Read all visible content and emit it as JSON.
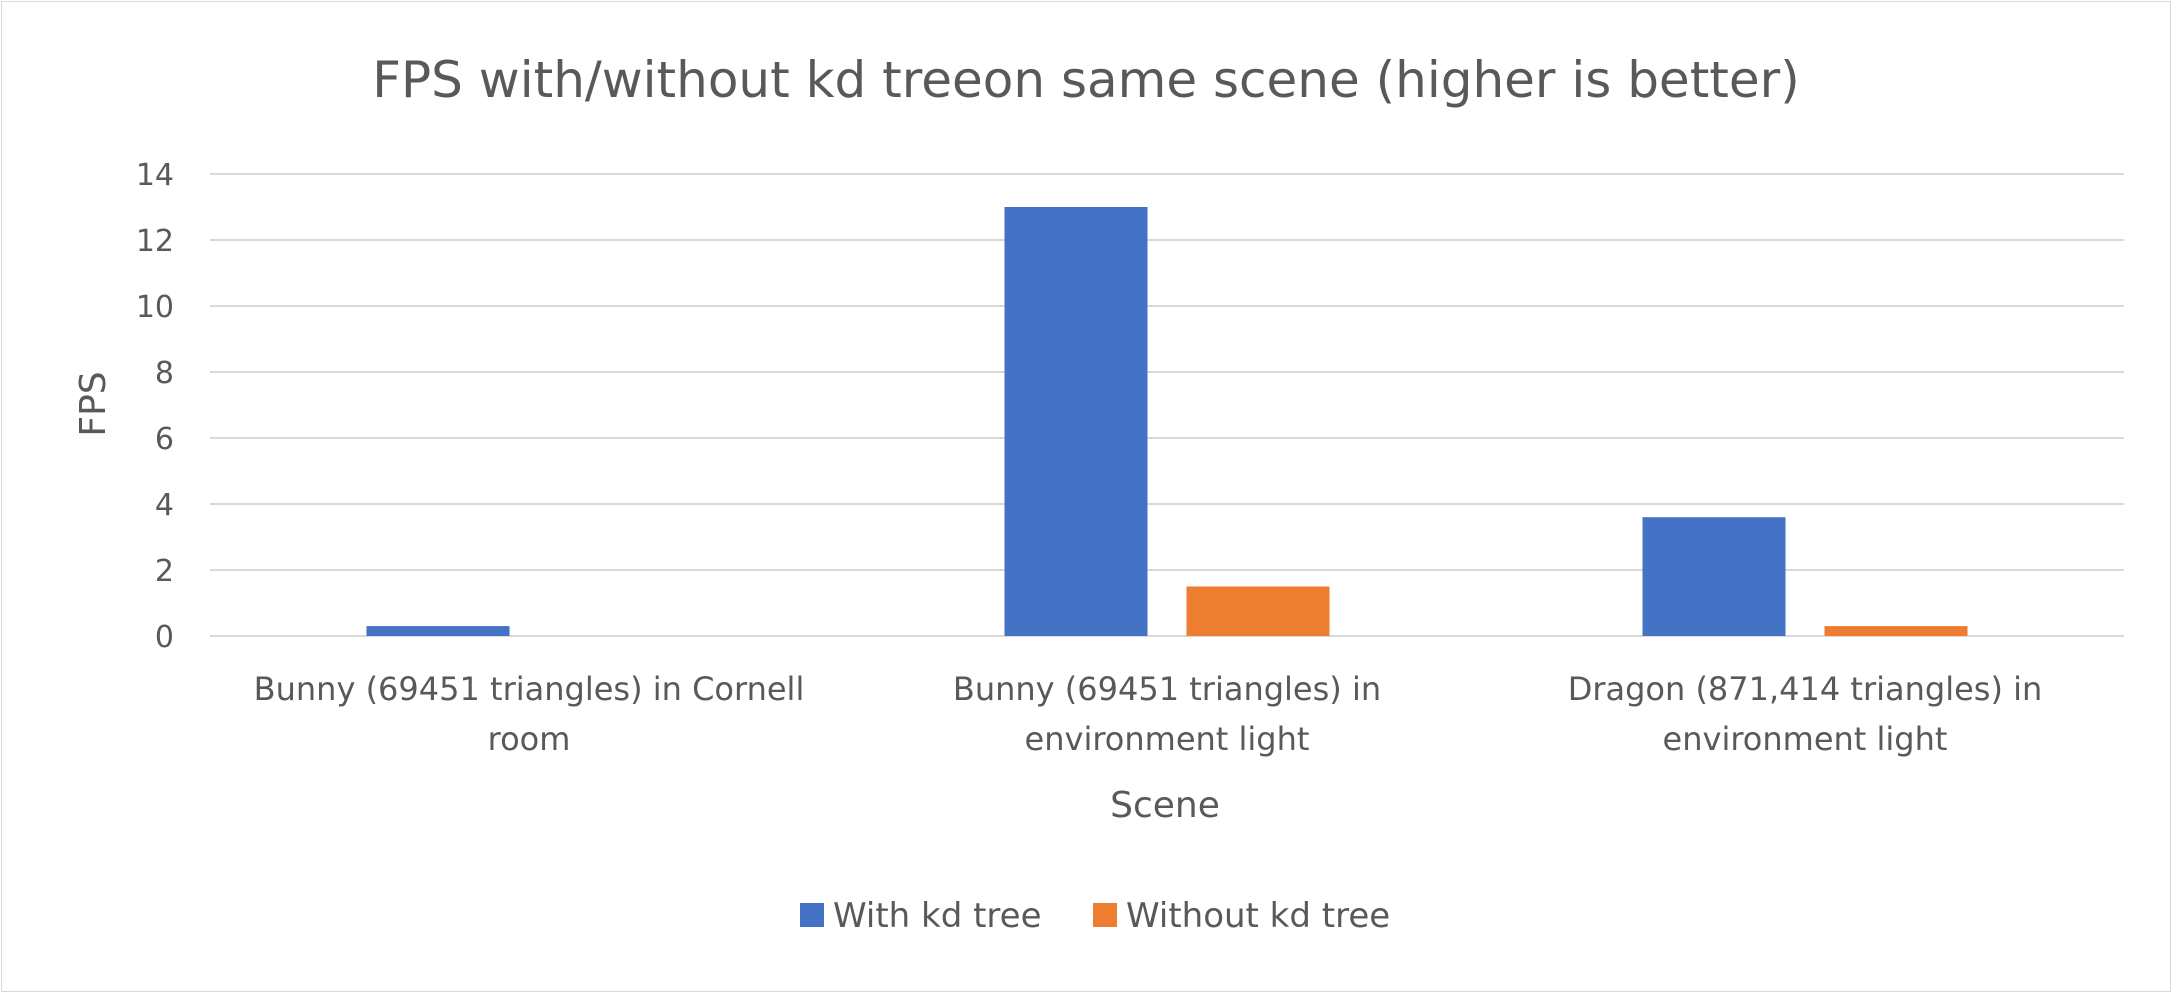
{
  "chart_data": {
    "type": "bar",
    "title": "FPS with/without kd treeon same scene (higher is better)",
    "xlabel": "Scene",
    "ylabel": "FPS",
    "ylim": [
      0,
      14
    ],
    "yticks": [
      0,
      2,
      4,
      6,
      8,
      10,
      12,
      14
    ],
    "grid": true,
    "legend_position": "bottom",
    "categories": [
      [
        "Bunny (69451 triangles) in Cornell",
        "room"
      ],
      [
        "Bunny (69451 triangles) in",
        "environment light"
      ],
      [
        "Dragon (871,414 triangles) in",
        "environment light"
      ]
    ],
    "series": [
      {
        "name": "With kd tree",
        "color": "#4472c4",
        "values": [
          0.3,
          13.0,
          3.6
        ]
      },
      {
        "name": "Without kd tree",
        "color": "#ed7d31",
        "values": [
          0,
          1.5,
          0.3
        ]
      }
    ]
  }
}
